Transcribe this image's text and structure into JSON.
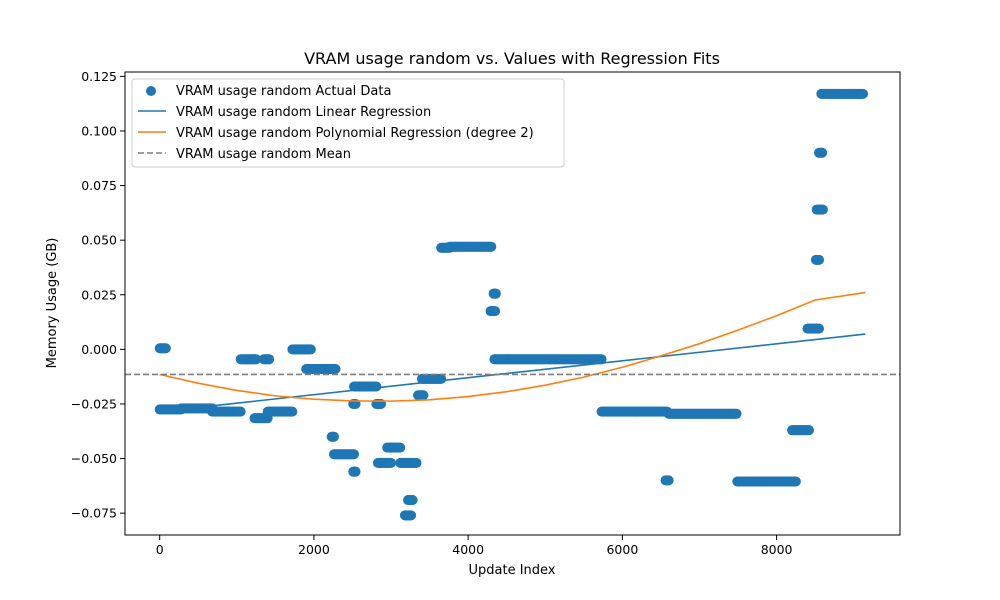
{
  "chart_data": {
    "type": "scatter",
    "title": "VRAM usage random vs. Values with Regression Fits",
    "xlabel": "Update Index",
    "ylabel": "Memory Usage (GB)",
    "xlim": [
      -450,
      9600
    ],
    "ylim": [
      -0.085,
      0.127
    ],
    "x_ticks": [
      0,
      2000,
      4000,
      6000,
      8000
    ],
    "x_tick_labels": [
      "0",
      "2000",
      "4000",
      "6000",
      "8000"
    ],
    "y_ticks": [
      -0.075,
      -0.05,
      -0.025,
      0.0,
      0.025,
      0.05,
      0.075,
      0.1,
      0.125
    ],
    "y_tick_labels": [
      "−0.075",
      "−0.050",
      "−0.025",
      "0.000",
      "0.025",
      "0.050",
      "0.075",
      "0.100",
      "0.125"
    ],
    "grid": false,
    "legend_position": "top-left",
    "colors": {
      "scatter": "#1f77b4",
      "linear": "#1f77b4",
      "poly": "#ff7f0e",
      "mean": "#7f7f7f"
    },
    "series": [
      {
        "name": "VRAM usage random Actual Data",
        "kind": "scatter",
        "segments": [
          {
            "x": [
              0,
              80
            ],
            "y": 0.0005
          },
          {
            "x": [
              0,
              280
            ],
            "y": -0.0275
          },
          {
            "x": [
              280,
              680
            ],
            "y": -0.027
          },
          {
            "x": [
              680,
              1050
            ],
            "y": -0.0285
          },
          {
            "x": [
              1050,
              1250
            ],
            "y": -0.0045
          },
          {
            "x": [
              1230,
              1400
            ],
            "y": -0.0315
          },
          {
            "x": [
              1350,
              1420
            ],
            "y": -0.0045
          },
          {
            "x": [
              1400,
              1720
            ],
            "y": -0.0285
          },
          {
            "x": [
              1720,
              1960
            ],
            "y": 0.0
          },
          {
            "x": [
              1900,
              2280
            ],
            "y": -0.009
          },
          {
            "x": [
              2230,
              2260
            ],
            "y": -0.04
          },
          {
            "x": [
              2260,
              2520
            ],
            "y": -0.048
          },
          {
            "x": [
              2510,
              2540
            ],
            "y": -0.025
          },
          {
            "x": [
              2510,
              2540
            ],
            "y": -0.056
          },
          {
            "x": [
              2520,
              2810
            ],
            "y": -0.017
          },
          {
            "x": [
              2810,
              2870
            ],
            "y": -0.025
          },
          {
            "x": [
              2830,
              3000
            ],
            "y": -0.052
          },
          {
            "x": [
              2950,
              3120
            ],
            "y": -0.045
          },
          {
            "x": [
              3120,
              3330
            ],
            "y": -0.052
          },
          {
            "x": [
              3180,
              3260
            ],
            "y": -0.076
          },
          {
            "x": [
              3220,
              3280
            ],
            "y": -0.069
          },
          {
            "x": [
              3350,
              3420
            ],
            "y": -0.021
          },
          {
            "x": [
              3400,
              3650
            ],
            "y": -0.0135
          },
          {
            "x": [
              3650,
              3760
            ],
            "y": 0.0465
          },
          {
            "x": [
              3760,
              4300
            ],
            "y": 0.047
          },
          {
            "x": [
              4290,
              4350
            ],
            "y": 0.0175
          },
          {
            "x": [
              4330,
              4360
            ],
            "y": 0.0255
          },
          {
            "x": [
              4340,
              5730
            ],
            "y": -0.0045
          },
          {
            "x": [
              5730,
              6580
            ],
            "y": -0.0285
          },
          {
            "x": [
              6560,
              6600
            ],
            "y": -0.06
          },
          {
            "x": [
              6600,
              7480
            ],
            "y": -0.0295
          },
          {
            "x": [
              7490,
              8250
            ],
            "y": -0.0605
          },
          {
            "x": [
              8200,
              8420
            ],
            "y": -0.037
          },
          {
            "x": [
              8400,
              8550
            ],
            "y": 0.0095
          },
          {
            "x": [
              8510,
              8550
            ],
            "y": 0.041
          },
          {
            "x": [
              8520,
              8600
            ],
            "y": 0.064
          },
          {
            "x": [
              8550,
              8590
            ],
            "y": 0.09
          },
          {
            "x": [
              8580,
              9120
            ],
            "y": 0.117
          }
        ]
      },
      {
        "name": "VRAM usage random Linear Regression",
        "kind": "line",
        "x": [
          0,
          9150
        ],
        "y": [
          -0.0285,
          0.007
        ]
      },
      {
        "name": "VRAM usage random Polynomial Regression (degree 2)",
        "kind": "curve",
        "x": [
          0,
          500,
          1000,
          1500,
          2000,
          2500,
          3000,
          3500,
          4000,
          4500,
          5000,
          5500,
          6000,
          6500,
          7000,
          7500,
          8000,
          8500,
          9150
        ],
        "y": [
          -0.0115,
          -0.0155,
          -0.0188,
          -0.0213,
          -0.0228,
          -0.0236,
          -0.0237,
          -0.0231,
          -0.0216,
          -0.0194,
          -0.0164,
          -0.0127,
          -0.0082,
          -0.003,
          0.0026,
          0.0088,
          0.0154,
          0.0226,
          0.026
        ]
      },
      {
        "name": "VRAM usage random Mean",
        "kind": "hline",
        "y": -0.0115
      }
    ]
  }
}
